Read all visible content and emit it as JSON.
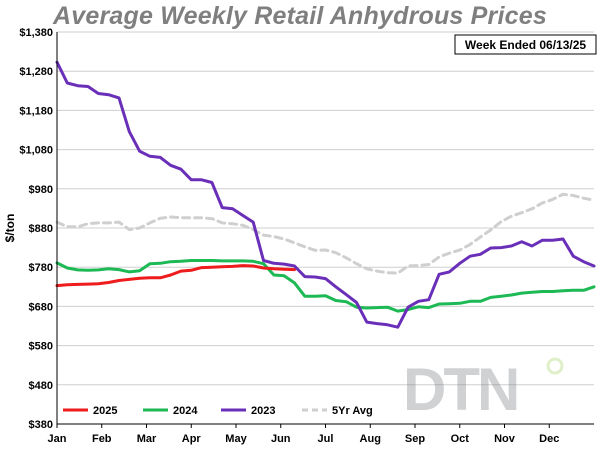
{
  "chart_data": {
    "type": "line",
    "title": "Average Weekly Retail Anhydrous Prices",
    "annotation": "Week Ended 06/13/25",
    "xlabel": "",
    "ylabel": "$/ton",
    "x_ticks": [
      "Jan",
      "Feb",
      "Mar",
      "Apr",
      "May",
      "Jun",
      "Jul",
      "Aug",
      "Sep",
      "Oct",
      "Nov",
      "Dec"
    ],
    "y_ticks": [
      "$380",
      "$480",
      "$580",
      "$680",
      "$780",
      "$880",
      "$980",
      "$1,080",
      "$1,180",
      "$1,280",
      "$1,380"
    ],
    "ylim": [
      380,
      1380
    ],
    "xlim": [
      1,
      53
    ],
    "x_unit": "week of year",
    "grid": "horizontal",
    "legend_position": "bottom-left",
    "series": [
      {
        "name": "2025",
        "color": "#ee1c1c",
        "dashed": false,
        "x": [
          1,
          2,
          3,
          4,
          5,
          6,
          7,
          8,
          9,
          10,
          11,
          12,
          13,
          14,
          15,
          16,
          17,
          18,
          19,
          20,
          21,
          22,
          23,
          24
        ],
        "values": [
          733,
          735,
          736,
          737,
          738,
          741,
          746,
          749,
          752,
          753,
          753,
          760,
          770,
          772,
          779,
          780,
          781,
          782,
          784,
          783,
          778,
          776,
          775,
          774
        ]
      },
      {
        "name": "2024",
        "color": "#1db954",
        "dashed": false,
        "x": [
          1,
          2,
          3,
          4,
          5,
          6,
          7,
          8,
          9,
          10,
          11,
          12,
          13,
          14,
          15,
          16,
          17,
          18,
          19,
          20,
          21,
          22,
          23,
          24,
          25,
          26,
          27,
          28,
          29,
          30,
          31,
          32,
          33,
          34,
          35,
          36,
          37,
          38,
          39,
          40,
          41,
          42,
          43,
          44,
          45,
          46,
          47,
          48,
          49,
          50,
          51,
          52,
          53
        ],
        "values": [
          791,
          778,
          773,
          772,
          773,
          776,
          774,
          768,
          771,
          789,
          790,
          794,
          795,
          797,
          797,
          797,
          796,
          796,
          796,
          795,
          789,
          760,
          758,
          740,
          706,
          706,
          707,
          695,
          692,
          678,
          676,
          677,
          678,
          668,
          672,
          679,
          677,
          686,
          687,
          688,
          693,
          693,
          703,
          706,
          709,
          714,
          716,
          718,
          718,
          720,
          721,
          721,
          730
        ]
      },
      {
        "name": "2023",
        "color": "#6a2fb8",
        "dashed": false,
        "x": [
          1,
          2,
          3,
          4,
          5,
          6,
          7,
          8,
          9,
          10,
          11,
          12,
          13,
          14,
          15,
          16,
          17,
          18,
          19,
          20,
          21,
          22,
          23,
          24,
          25,
          26,
          27,
          28,
          29,
          30,
          31,
          32,
          33,
          34,
          35,
          36,
          37,
          38,
          39,
          40,
          41,
          42,
          43,
          44,
          45,
          46,
          47,
          48,
          49,
          50,
          51,
          52,
          53
        ],
        "values": [
          1303,
          1250,
          1243,
          1241,
          1223,
          1220,
          1212,
          1126,
          1076,
          1063,
          1060,
          1040,
          1030,
          1003,
          1003,
          996,
          932,
          929,
          912,
          895,
          797,
          790,
          788,
          783,
          756,
          755,
          751,
          730,
          710,
          690,
          640,
          636,
          633,
          627,
          678,
          693,
          697,
          762,
          768,
          790,
          808,
          813,
          829,
          830,
          834,
          845,
          834,
          849,
          849,
          852,
          808,
          794,
          783
        ]
      },
      {
        "name": "5Yr Avg",
        "color": "#cfcfcf",
        "dashed": true,
        "x": [
          1,
          2,
          3,
          4,
          5,
          6,
          7,
          8,
          9,
          10,
          11,
          12,
          13,
          14,
          15,
          16,
          17,
          18,
          19,
          20,
          21,
          22,
          23,
          24,
          25,
          26,
          27,
          28,
          29,
          30,
          31,
          32,
          33,
          34,
          35,
          36,
          37,
          38,
          39,
          40,
          41,
          42,
          43,
          44,
          45,
          46,
          47,
          48,
          49,
          50,
          51,
          52,
          53
        ],
        "values": [
          895,
          883,
          883,
          891,
          893,
          893,
          895,
          876,
          880,
          893,
          905,
          908,
          906,
          906,
          906,
          904,
          893,
          891,
          887,
          876,
          862,
          858,
          852,
          842,
          832,
          823,
          824,
          817,
          804,
          789,
          776,
          770,
          766,
          765,
          783,
          784,
          787,
          806,
          816,
          824,
          838,
          857,
          875,
          896,
          910,
          919,
          929,
          944,
          953,
          966,
          963,
          956,
          951
        ]
      }
    ]
  }
}
